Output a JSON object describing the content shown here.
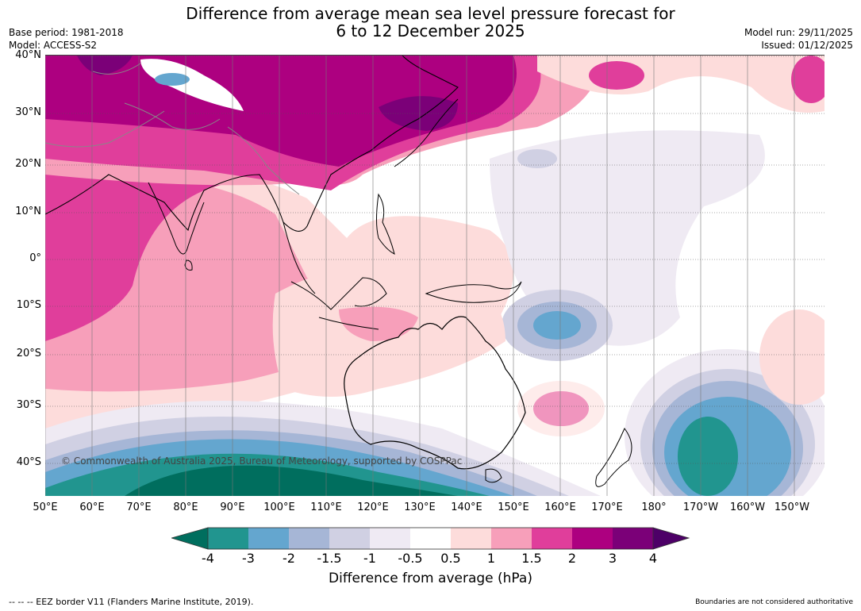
{
  "header": {
    "title_line1": "Difference from average mean sea level pressure forecast for",
    "title_line2": "6 to 12 December 2025",
    "base_period": "Base period: 1981-2018",
    "model": "Model: ACCESS-S2",
    "model_run": "Model run: 29/11/2025",
    "issued": "Issued: 01/12/2025"
  },
  "map": {
    "latitudes": [
      "40°N",
      "30°N",
      "20°N",
      "10°N",
      "0°",
      "10°S",
      "20°S",
      "30°S",
      "40°S"
    ],
    "longitudes": [
      "50°E",
      "60°E",
      "70°E",
      "80°E",
      "90°E",
      "100°E",
      "110°E",
      "120°E",
      "130°E",
      "140°E",
      "150°E",
      "160°E",
      "170°E",
      "180°",
      "170°W",
      "160°W",
      "150°W"
    ],
    "copyright": "© Commonwealth of Australia 2025, Bureau of Meteorology, supported by COSPPac"
  },
  "colorbar": {
    "title": "Difference from average (hPa)",
    "ticks": [
      "-4",
      "-3",
      "-2",
      "-1.5",
      "-1",
      "-0.5",
      "0.5",
      "1",
      "1.5",
      "2",
      "3",
      "4"
    ],
    "colors": [
      "#006e5e",
      "#21958f",
      "#64a6cf",
      "#a6b6d6",
      "#d0d0e3",
      "#efeaf3",
      "#ffffff",
      "#fddcdb",
      "#f79fba",
      "#e03e9b",
      "#ad0080",
      "#7b0078",
      "#4d0067"
    ]
  },
  "footer": {
    "eez": "--  --  -- EEZ border V11 (Flanders Marine Institute, 2019).",
    "disclaimer": "Boundaries are not considered authoritative"
  }
}
